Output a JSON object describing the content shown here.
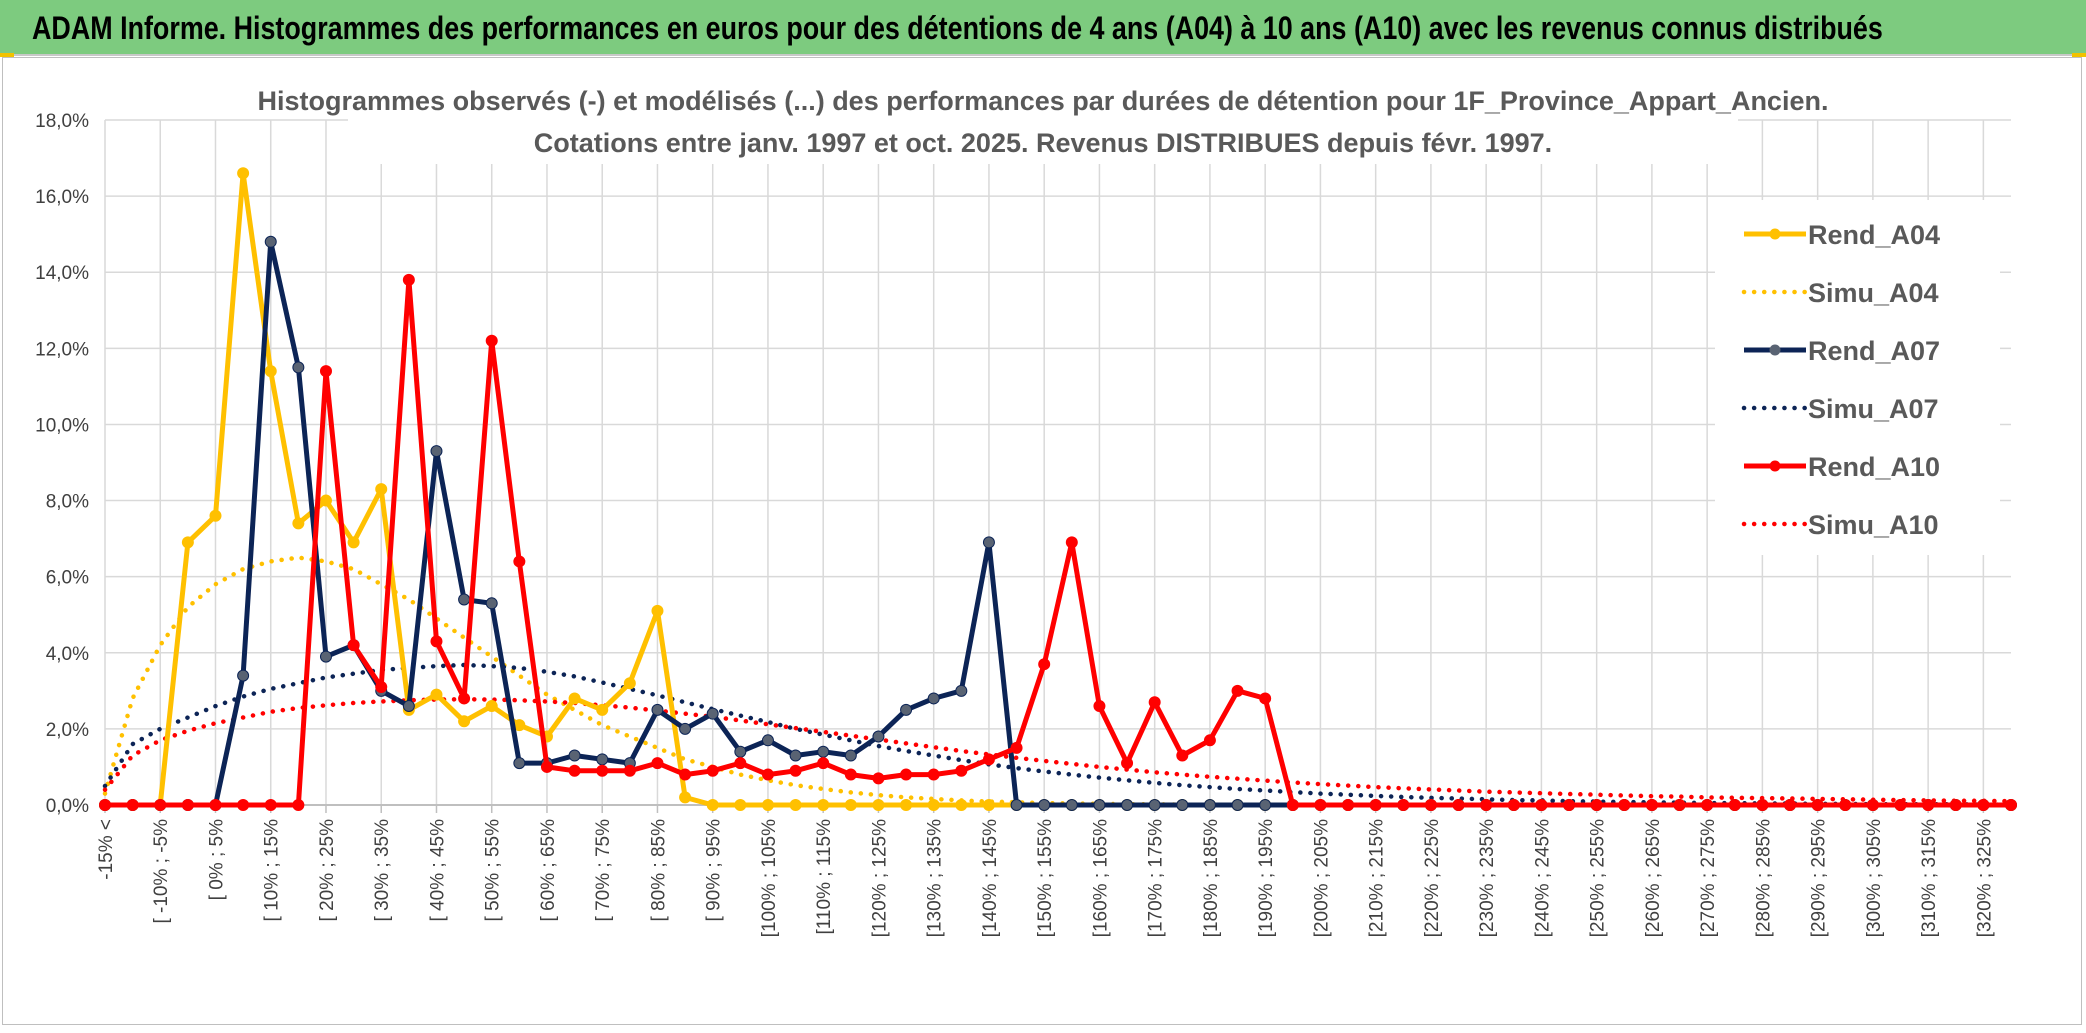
{
  "header": {
    "title": "ADAM Informe. Histogrammes des performances en euros pour des détentions de 4 ans (A04) à 10 ans (A10) avec les revenus connus distribués"
  },
  "chart_data": {
    "type": "line",
    "title": "Histogrammes observés (-) et modélisés (...) des performances par durées de détention pour 1F_Province_Appart_Ancien.",
    "subtitle": "Cotations entre janv. 1997 et oct. 2025. Revenus DISTRIBUES depuis févr. 1997.",
    "xlabel": "",
    "ylabel": "",
    "ylim": [
      0,
      18
    ],
    "y_unit": "%",
    "y_ticks": [
      "0,0%",
      "2,0%",
      "4,0%",
      "6,0%",
      "8,0%",
      "10,0%",
      "12,0%",
      "14,0%",
      "16,0%",
      "18,0%"
    ],
    "grid": true,
    "legend_position": "right",
    "x_tick_labels": [
      "-15% <",
      "[ -10% ; -5%",
      "[ 0% ; 5%",
      "[ 10% ; 15%",
      "[ 20% ; 25%",
      "[ 30% ; 35%",
      "[ 40% ; 45%",
      "[ 50% ; 55%",
      "[ 60% ; 65%",
      "[ 70% ; 75%",
      "[ 80% ; 85%",
      "[ 90% ; 95%",
      "[100% ; 105%",
      "[110% ; 115%",
      "[120% ; 125%",
      "[130% ; 135%",
      "[140% ; 145%",
      "[150% ; 155%",
      "[160% ; 165%",
      "[170% ; 175%",
      "[180% ; 185%",
      "[190% ; 195%",
      "[200% ; 205%",
      "[210% ; 215%",
      "[220% ; 225%",
      "[230% ; 235%",
      "[240% ; 245%",
      "[250% ; 255%",
      "[260% ; 265%",
      "[270% ; 275%",
      "[280% ; 285%",
      "[290% ; 295%",
      "[300% ; 305%",
      "[310% ; 315%",
      "[320% ; 325%"
    ],
    "n_bins": 70,
    "series": [
      {
        "name": "Rend_A04",
        "style": "solid",
        "color": "#FFC000",
        "values": [
          0,
          0,
          0,
          6.9,
          7.6,
          16.6,
          11.4,
          7.4,
          8.0,
          6.9,
          8.3,
          2.5,
          2.9,
          2.2,
          2.6,
          2.1,
          1.8,
          2.8,
          2.5,
          3.2,
          5.1,
          0.2,
          0,
          0,
          0,
          0,
          0,
          0,
          0,
          0,
          0,
          0,
          0,
          0,
          0,
          0,
          0,
          0,
          0,
          0,
          0,
          0,
          0,
          0,
          0,
          0,
          0,
          0,
          0,
          0,
          0,
          0,
          0,
          0,
          0,
          0,
          0,
          0,
          0,
          0,
          0,
          0,
          0,
          0,
          0,
          0,
          0,
          0,
          0,
          0
        ]
      },
      {
        "name": "Simu_A04",
        "style": "dotted",
        "color": "#FFC000",
        "values": [
          0.3,
          2.8,
          4.2,
          5.2,
          5.8,
          6.2,
          6.4,
          6.5,
          6.4,
          6.2,
          5.8,
          5.4,
          4.9,
          4.4,
          3.9,
          3.4,
          2.9,
          2.5,
          2.1,
          1.8,
          1.5,
          1.2,
          1.0,
          0.8,
          0.65,
          0.52,
          0.42,
          0.33,
          0.26,
          0.2,
          0.16,
          0.12,
          0.09,
          0.07,
          0.05,
          0.04,
          0.03,
          0.02,
          0.02,
          0.01,
          0,
          0,
          0,
          0,
          0,
          0,
          0,
          0,
          0,
          0,
          0,
          0,
          0,
          0,
          0,
          0,
          0,
          0,
          0,
          0,
          0,
          0,
          0,
          0,
          0,
          0,
          0,
          0,
          0,
          0
        ]
      },
      {
        "name": "Rend_A07",
        "style": "solid",
        "color": "#0C2456",
        "values": [
          0,
          0,
          0,
          0,
          0,
          3.4,
          14.8,
          11.5,
          3.9,
          4.2,
          3.0,
          2.6,
          9.3,
          5.4,
          5.3,
          1.1,
          1.1,
          1.3,
          1.2,
          1.1,
          2.5,
          2.0,
          2.4,
          1.4,
          1.7,
          1.3,
          1.4,
          1.3,
          1.8,
          2.5,
          2.8,
          3.0,
          6.9,
          0,
          0,
          0,
          0,
          0,
          0,
          0,
          0,
          0,
          0,
          0,
          0,
          0,
          0,
          0,
          0,
          0,
          0,
          0,
          0,
          0,
          0,
          0,
          0,
          0,
          0,
          0,
          0,
          0,
          0,
          0,
          0,
          0,
          0,
          0,
          0,
          0
        ]
      },
      {
        "name": "Simu_A07",
        "style": "dotted",
        "color": "#0C2456",
        "values": [
          0.5,
          1.6,
          2.0,
          2.3,
          2.6,
          2.85,
          3.05,
          3.2,
          3.35,
          3.45,
          3.55,
          3.6,
          3.65,
          3.68,
          3.65,
          3.6,
          3.5,
          3.38,
          3.22,
          3.05,
          2.88,
          2.7,
          2.52,
          2.35,
          2.18,
          2.0,
          1.85,
          1.7,
          1.55,
          1.42,
          1.3,
          1.18,
          1.07,
          0.97,
          0.88,
          0.8,
          0.72,
          0.65,
          0.58,
          0.52,
          0.47,
          0.42,
          0.38,
          0.34,
          0.3,
          0.27,
          0.24,
          0.21,
          0.19,
          0.17,
          0.15,
          0.13,
          0.12,
          0.1,
          0.09,
          0.08,
          0.07,
          0.06,
          0.05,
          0.05,
          0.04,
          0.04,
          0.03,
          0.03,
          0.02,
          0.02,
          0.02,
          0.02,
          0.01,
          0.01
        ]
      },
      {
        "name": "Rend_A10",
        "style": "solid",
        "color": "#FF0000",
        "values": [
          0,
          0,
          0,
          0,
          0,
          0,
          0,
          0,
          11.4,
          4.2,
          3.1,
          13.8,
          4.3,
          2.8,
          12.2,
          6.4,
          1.0,
          0.9,
          0.9,
          0.9,
          1.1,
          0.8,
          0.9,
          1.1,
          0.8,
          0.9,
          1.1,
          0.8,
          0.7,
          0.8,
          0.8,
          0.9,
          1.2,
          1.5,
          3.7,
          6.9,
          2.6,
          1.1,
          2.7,
          1.3,
          1.7,
          3.0,
          2.8,
          0,
          0,
          0,
          0,
          0,
          0,
          0,
          0,
          0,
          0,
          0,
          0,
          0,
          0,
          0,
          0,
          0,
          0,
          0,
          0,
          0,
          0,
          0,
          0,
          0,
          0,
          0
        ]
      },
      {
        "name": "Simu_A10",
        "style": "dotted",
        "color": "#FF0000",
        "values": [
          0.4,
          1.3,
          1.7,
          1.95,
          2.15,
          2.3,
          2.45,
          2.55,
          2.62,
          2.68,
          2.72,
          2.75,
          2.77,
          2.78,
          2.77,
          2.75,
          2.72,
          2.68,
          2.62,
          2.56,
          2.48,
          2.4,
          2.32,
          2.22,
          2.12,
          2.02,
          1.92,
          1.82,
          1.72,
          1.62,
          1.52,
          1.42,
          1.33,
          1.24,
          1.16,
          1.08,
          1.0,
          0.93,
          0.86,
          0.8,
          0.74,
          0.69,
          0.64,
          0.59,
          0.55,
          0.51,
          0.47,
          0.44,
          0.41,
          0.38,
          0.35,
          0.33,
          0.31,
          0.29,
          0.27,
          0.25,
          0.23,
          0.22,
          0.2,
          0.19,
          0.18,
          0.17,
          0.16,
          0.15,
          0.14,
          0.13,
          0.12,
          0.11,
          0.11,
          0.1
        ]
      }
    ]
  }
}
